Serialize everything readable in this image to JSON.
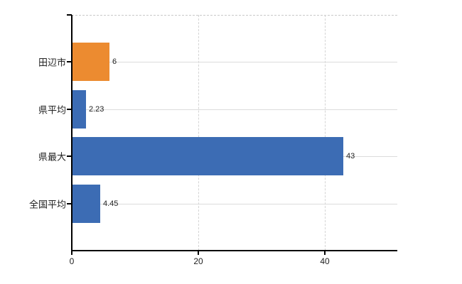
{
  "chart_data": {
    "type": "bar",
    "orientation": "horizontal",
    "title": "",
    "xlabel": "",
    "ylabel": "",
    "categories": [
      "田辺市",
      "県平均",
      "県最大",
      "全国平均"
    ],
    "values": [
      6,
      2.23,
      43,
      4.45
    ],
    "value_labels": [
      "6",
      "2.23",
      "43",
      "4.45"
    ],
    "bar_colors": [
      "#ec8b30",
      "#3c6cb4",
      "#3c6cb4",
      "#3c6cb4"
    ],
    "x_ticks": [
      0,
      20,
      40
    ],
    "x_tick_labels": [
      "0",
      "20",
      "40"
    ],
    "xlim": [
      0,
      51.5
    ],
    "grid": true,
    "legend": "none",
    "colors": {
      "axis": "#000000",
      "grid_horizontal": "#dcdcdc",
      "grid_vertical": "#d4d4d4",
      "top_border": "#c8c8c8",
      "text": "#222222",
      "bar_blue": "#3c6cb4",
      "bar_orange": "#ec8b30"
    }
  }
}
